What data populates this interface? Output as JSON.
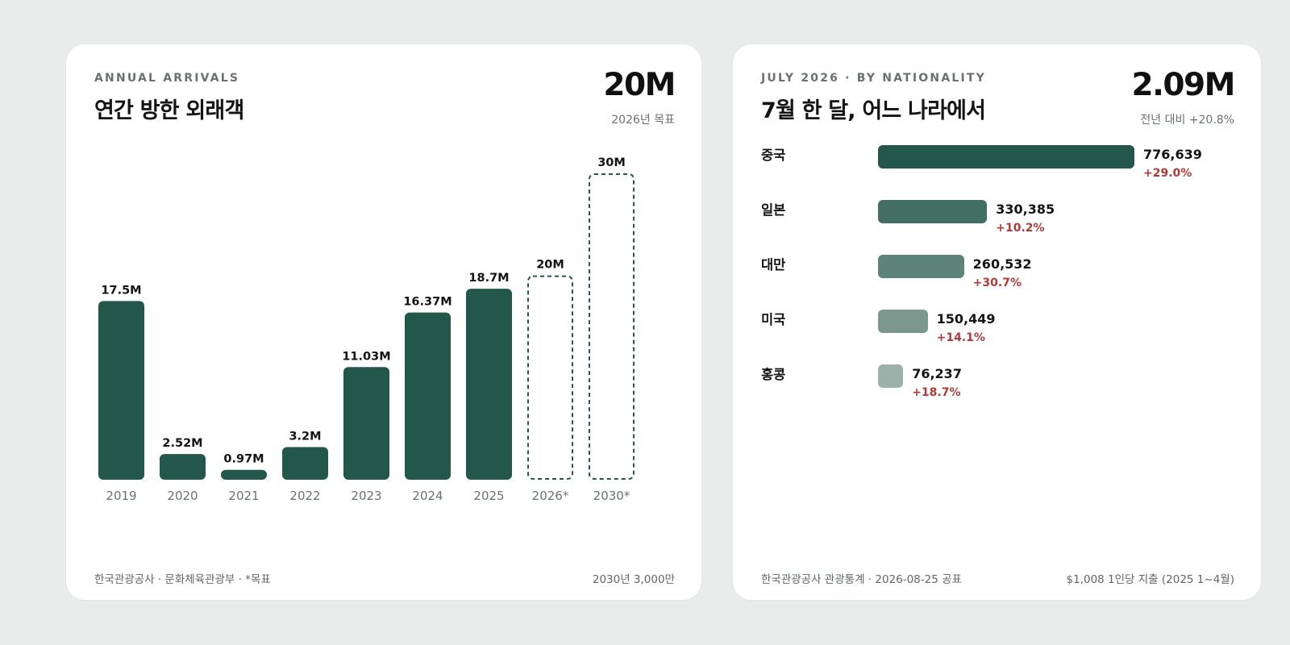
{
  "annual": {
    "eyebrow": "ANNUAL ARRIVALS",
    "title": "연간 방한 외래객",
    "kpi": "20M",
    "kpi_sub": "2026년 목표",
    "footer_left": "한국관광공사 · 문화체육관광부 · *목표",
    "footer_right": "2030년 3,000만"
  },
  "nationality": {
    "eyebrow": "JULY 2026 · BY NATIONALITY",
    "title": "7월 한 달, 어느 나라에서",
    "kpi": "2.09M",
    "kpi_sub": "전년 대비 +20.8%",
    "footer_left": "한국관광공사 관광통계 · 2026-08-25 공표",
    "footer_right": "$1,008 1인당 지출 (2025 1~4월)"
  },
  "colors": {
    "bar": "#23574a",
    "target_stroke": "#23574a",
    "change_positive": "#b03a3a",
    "nation_bars": [
      "#23574a",
      "#436f63",
      "#5e8378",
      "#7b978e",
      "#9bb1aa"
    ]
  },
  "chart_data": [
    {
      "type": "bar",
      "categories": [
        "2019",
        "2020",
        "2021",
        "2022",
        "2023",
        "2024",
        "2025",
        "2026*",
        "2030*"
      ],
      "values": [
        17.5,
        2.52,
        0.97,
        3.2,
        11.03,
        16.37,
        18.7,
        20,
        30
      ],
      "value_labels": [
        "17.5M",
        "2.52M",
        "0.97M",
        "3.2M",
        "11.03M",
        "16.37M",
        "18.7M",
        "20M",
        "30M"
      ],
      "is_target": [
        false,
        false,
        false,
        false,
        false,
        false,
        false,
        true,
        true
      ],
      "ylim": [
        0,
        30
      ],
      "grid": false
    },
    {
      "type": "bar",
      "orientation": "horizontal",
      "categories": [
        "중국",
        "일본",
        "대만",
        "미국",
        "홍콩"
      ],
      "values": [
        776639,
        330385,
        260532,
        150449,
        76237
      ],
      "value_labels": [
        "776,639",
        "330,385",
        "260,532",
        "150,449",
        "76,237"
      ],
      "changes": [
        "+29.0%",
        "+10.2%",
        "+30.7%",
        "+14.1%",
        "+18.7%"
      ],
      "grid": false
    }
  ]
}
